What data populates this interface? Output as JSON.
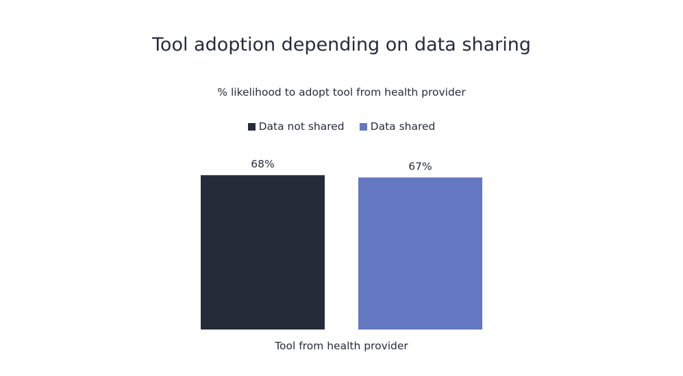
{
  "chart_data": {
    "type": "bar",
    "title": "Tool adoption depending on data sharing",
    "subtitle": "% likelihood to adopt tool from health provider",
    "categories": [
      "Tool from health provider"
    ],
    "xlabel": "Tool from health provider",
    "ylabel": "",
    "value_suffix": "%",
    "legend_position": "top-center",
    "grid": false,
    "series": [
      {
        "name": "Data not shared",
        "color": "#262b3a",
        "values": [
          68
        ]
      },
      {
        "name": "Data shared",
        "color": "#6477c1",
        "values": [
          67
        ]
      }
    ],
    "data_labels": [
      "68%",
      "67%"
    ]
  }
}
